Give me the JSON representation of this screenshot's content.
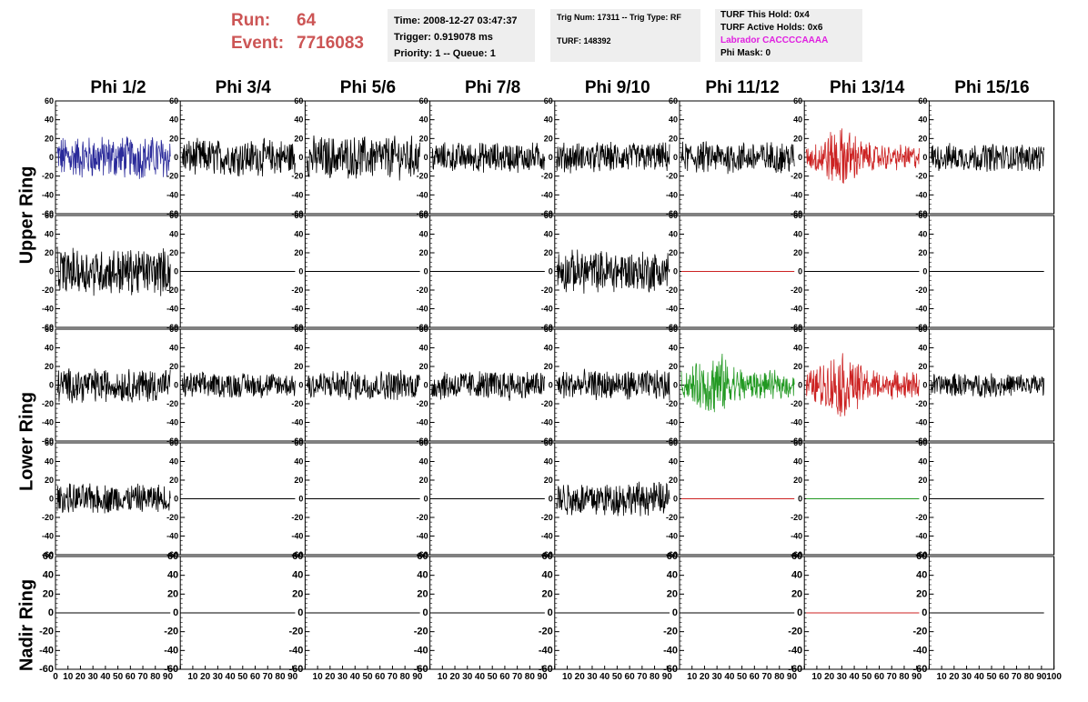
{
  "header": {
    "run_label": "Run:",
    "run_value": "64",
    "event_label": "Event:",
    "event_value": "7716083",
    "run_color": "#cc5555",
    "box1": [
      "Time: 2008-12-27 03:47:37",
      "Trigger: 0.919078 ms",
      "Priority: 1 -- Queue: 1"
    ],
    "box2": [
      "Trig Num: 17311 -- Trig Type: RF",
      "TURF: 148392"
    ],
    "box3": [
      "TURF This Hold: 0x4",
      "TURF Active Holds: 0x6",
      "Labrador CACCCCAAAA",
      "Phi Mask: 0"
    ],
    "labrador_color": "#e020e0"
  },
  "columns": [
    "Phi 1/2",
    "Phi 3/4",
    "Phi 5/6",
    "Phi 7/8",
    "Phi 9/10",
    "Phi 11/12",
    "Phi 13/14",
    "Phi 15/16"
  ],
  "rings": [
    "Upper Ring",
    "Lower Ring",
    "Nadir Ring"
  ],
  "chart_data": {
    "type": "line",
    "description_rows": [
      "upper-a",
      "upper-b",
      "lower-a",
      "lower-b",
      "nadir"
    ],
    "ylim": [
      -60,
      60
    ],
    "y_ticks": [
      -60,
      -40,
      -20,
      0,
      20,
      40,
      60
    ],
    "xlim": [
      0,
      100
    ],
    "x_ticks": [
      0,
      10,
      20,
      30,
      40,
      50,
      60,
      70,
      80,
      90,
      100
    ],
    "colors": {
      "black": "#000000",
      "blue": "#2a2a9a",
      "red": "#cc2222",
      "green": "#229922"
    },
    "panels": [
      [
        {
          "kind": "noise",
          "amp": 20,
          "color": "blue"
        },
        {
          "kind": "noise",
          "amp": 17,
          "color": "black"
        },
        {
          "kind": "noise",
          "amp": 20,
          "color": "black"
        },
        {
          "kind": "noise",
          "amp": 14,
          "color": "black"
        },
        {
          "kind": "noise",
          "amp": 14,
          "color": "black"
        },
        {
          "kind": "noise",
          "amp": 15,
          "color": "black"
        },
        {
          "kind": "burst",
          "amp": 22,
          "color": "red"
        },
        {
          "kind": "noise",
          "amp": 13,
          "color": "black"
        }
      ],
      [
        {
          "kind": "noise",
          "amp": 22,
          "color": "black"
        },
        {
          "kind": "flat",
          "color": "black"
        },
        {
          "kind": "flat",
          "color": "black"
        },
        {
          "kind": "flat",
          "color": "black"
        },
        {
          "kind": "noise",
          "amp": 20,
          "color": "black"
        },
        {
          "kind": "flat",
          "color": "red"
        },
        {
          "kind": "flat",
          "color": "black"
        },
        {
          "kind": "flat",
          "color": "black"
        }
      ],
      [
        {
          "kind": "noise",
          "amp": 16,
          "color": "black"
        },
        {
          "kind": "noise",
          "amp": 12,
          "color": "black"
        },
        {
          "kind": "noise",
          "amp": 14,
          "color": "black"
        },
        {
          "kind": "noise",
          "amp": 14,
          "color": "black"
        },
        {
          "kind": "noise",
          "amp": 14,
          "color": "black"
        },
        {
          "kind": "burst",
          "amp": 24,
          "color": "green"
        },
        {
          "kind": "burst",
          "amp": 24,
          "color": "red"
        },
        {
          "kind": "noise",
          "amp": 11,
          "color": "black"
        }
      ],
      [
        {
          "kind": "noise",
          "amp": 14,
          "color": "black"
        },
        {
          "kind": "flat",
          "color": "black"
        },
        {
          "kind": "flat",
          "color": "black"
        },
        {
          "kind": "flat",
          "color": "black"
        },
        {
          "kind": "noise",
          "amp": 16,
          "color": "black"
        },
        {
          "kind": "flat",
          "color": "red"
        },
        {
          "kind": "flat",
          "color": "green"
        },
        {
          "kind": "flat",
          "color": "black"
        }
      ],
      [
        {
          "kind": "flat",
          "color": "black"
        },
        {
          "kind": "flat",
          "color": "black"
        },
        {
          "kind": "flat",
          "color": "black"
        },
        {
          "kind": "flat",
          "color": "black"
        },
        {
          "kind": "flat",
          "color": "black"
        },
        {
          "kind": "flat",
          "color": "black"
        },
        {
          "kind": "flat",
          "color": "red"
        },
        {
          "kind": "flat",
          "color": "black"
        }
      ]
    ]
  }
}
